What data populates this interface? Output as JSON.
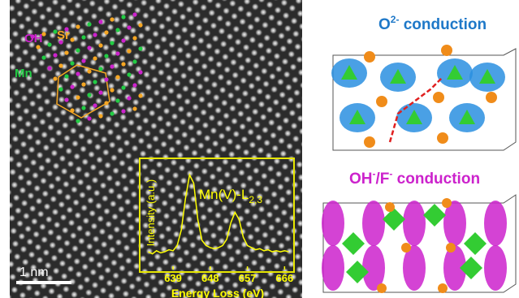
{
  "figure": {
    "image_labels": {
      "oh": "OH",
      "sr": "Sr",
      "mn": "Mn",
      "scale_bar": "1 nm"
    },
    "panel_top": {
      "title_base": "O",
      "title_sup": "2-",
      "title_rest": " conduction"
    },
    "panel_bottom": {
      "title_base": "OH",
      "title_sup1": "-",
      "title_mid": "/F",
      "title_sup2": "-",
      "title_rest": " conduction"
    }
  },
  "chart_data": {
    "type": "line",
    "color": "#ffff00",
    "x_label": "Energy Loss (eV)",
    "y_label": "Intensity (a.u.)",
    "annotation": "Mn(V)-L",
    "annotation_sub": "2,3",
    "xlim": [
      632.5,
      667.5
    ],
    "xticks": [
      639,
      648,
      657,
      666
    ],
    "ylim": [
      0,
      100
    ],
    "x": [
      633,
      634,
      635,
      636,
      637,
      638,
      639,
      640,
      641,
      642,
      643,
      644,
      645,
      646,
      647,
      648,
      649,
      650,
      651,
      652,
      653,
      654,
      655,
      656,
      657,
      658,
      659,
      660,
      661,
      662,
      663,
      664,
      665,
      666,
      667
    ],
    "series": [
      {
        "values": [
          14,
          12,
          15,
          13,
          14,
          16,
          15,
          20,
          35,
          65,
          88,
          80,
          45,
          25,
          20,
          18,
          17,
          18,
          20,
          26,
          42,
          52,
          45,
          28,
          20,
          18,
          16,
          17,
          15,
          16,
          14,
          15,
          14,
          15,
          14
        ]
      }
    ]
  }
}
